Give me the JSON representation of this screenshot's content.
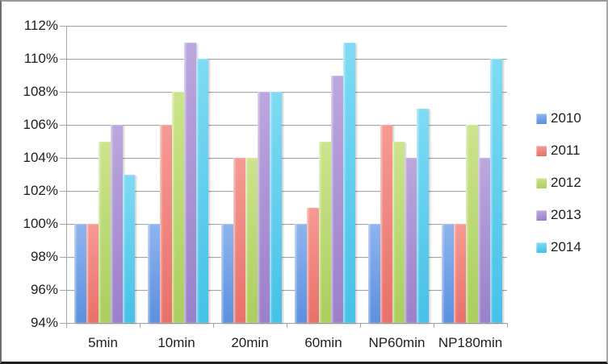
{
  "window": {
    "background": "#ffffff",
    "frame_border_color": "#8c8c8c"
  },
  "chart_data": {
    "type": "bar",
    "title": "",
    "xlabel": "",
    "ylabel": "",
    "categories": [
      "5min",
      "10min",
      "20min",
      "60min",
      "NP60min",
      "NP180min"
    ],
    "series": [
      {
        "name": "2010",
        "color": "#5b90df",
        "color_light": "#8fb4ee",
        "values": [
          100,
          100,
          100,
          100,
          100,
          100
        ]
      },
      {
        "name": "2011",
        "color": "#e8716a",
        "color_light": "#f59a93",
        "values": [
          100,
          106,
          104,
          101,
          106,
          100
        ]
      },
      {
        "name": "2012",
        "color": "#abce5d",
        "color_light": "#cce48d",
        "values": [
          105,
          108,
          104,
          105,
          105,
          106
        ]
      },
      {
        "name": "2013",
        "color": "#9a80c9",
        "color_light": "#bca7de",
        "values": [
          106,
          111,
          108,
          109,
          104,
          104
        ]
      },
      {
        "name": "2014",
        "color": "#45c1e7",
        "color_light": "#7fdbf4",
        "values": [
          103,
          110,
          108,
          111,
          107,
          110
        ]
      }
    ],
    "ylim": [
      94,
      112
    ],
    "ytick_step": 2,
    "ytick_labels": [
      "112%",
      "110%",
      "108%",
      "106%",
      "104%",
      "102%",
      "100%",
      "98%",
      "96%",
      "94%"
    ],
    "grid": true,
    "gridline_color": "#a6a6a6",
    "axis_color": "#a6a6a6",
    "text_color": "#1e1e1e",
    "legend_position": "right"
  }
}
